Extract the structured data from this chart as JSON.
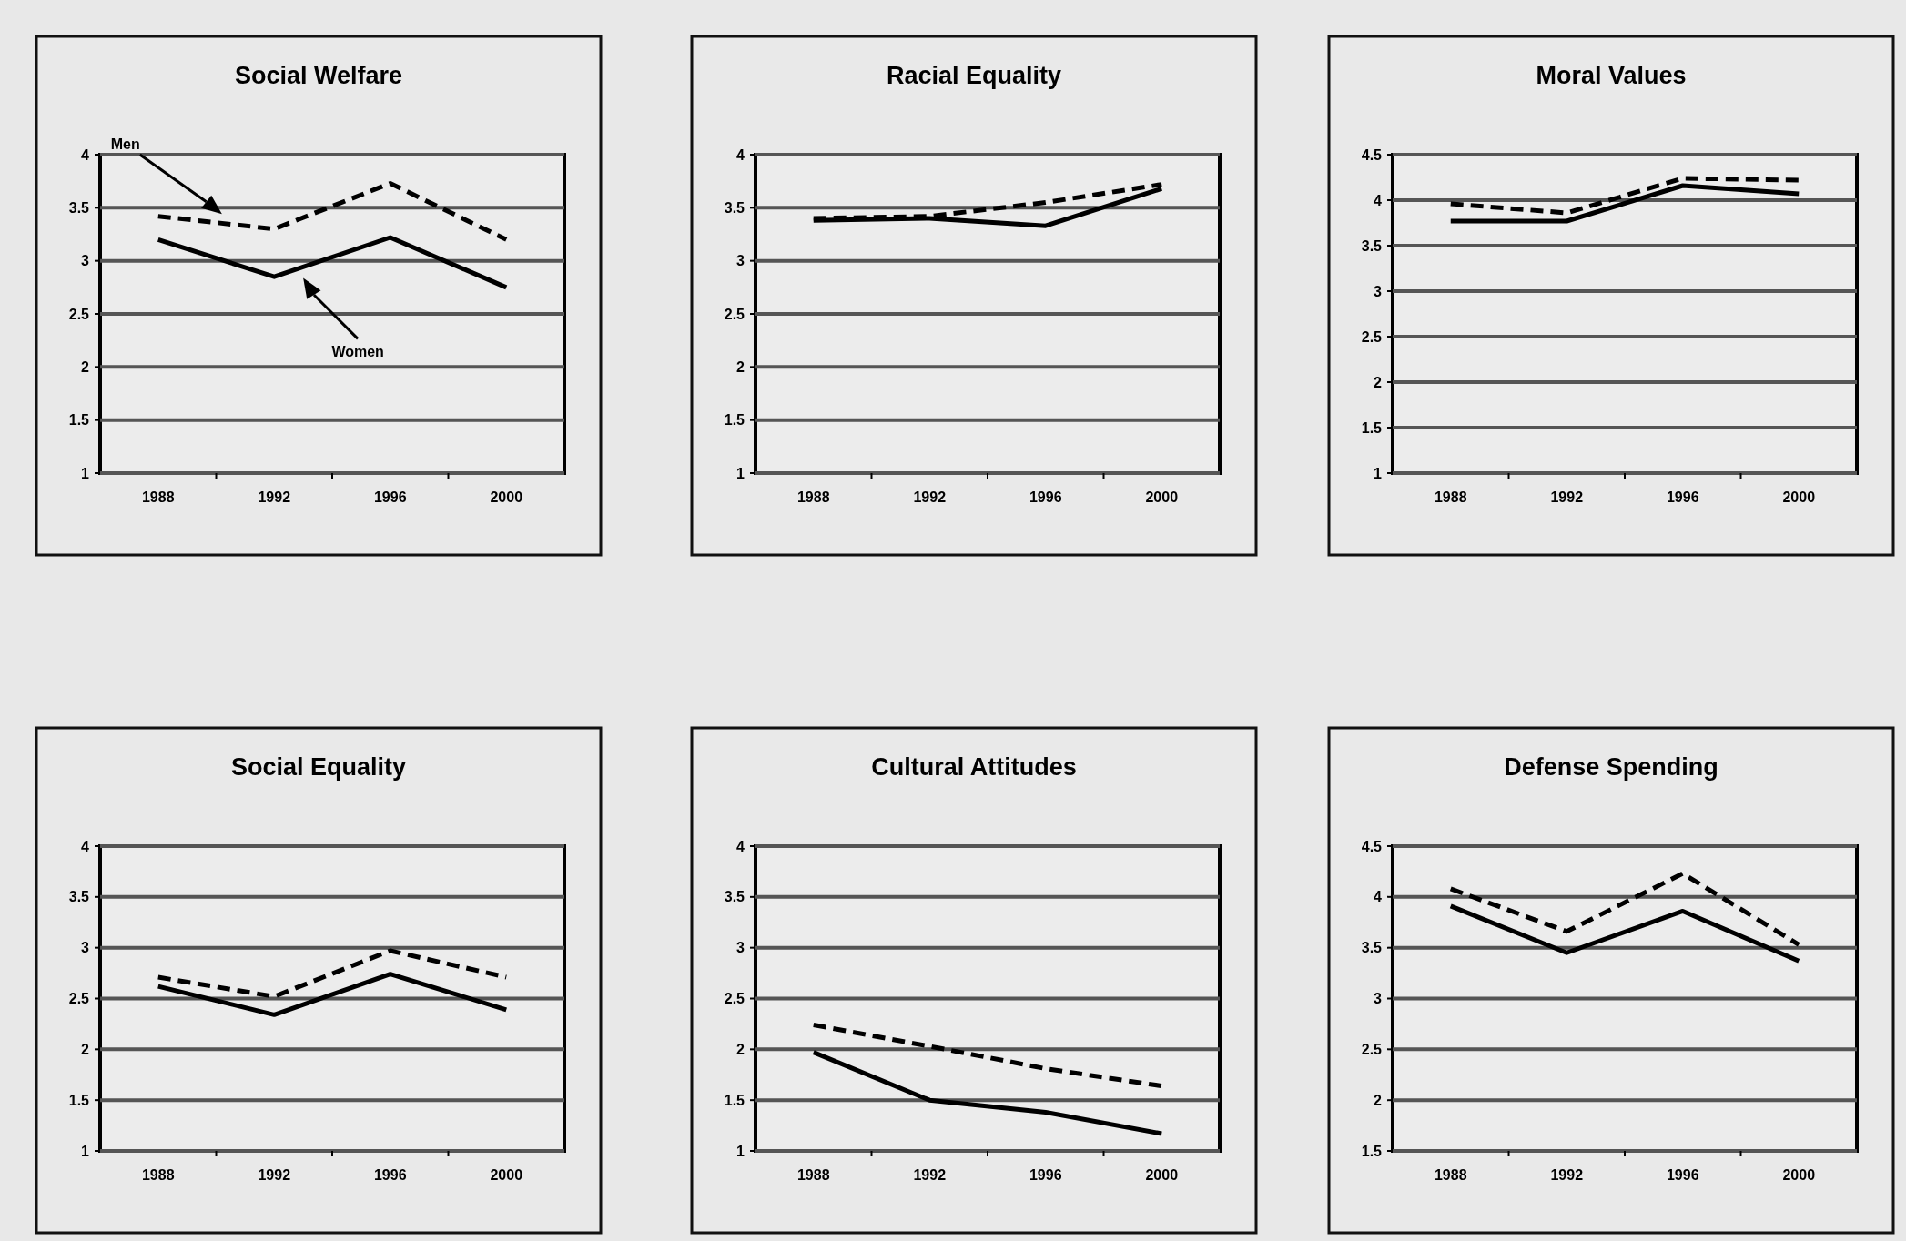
{
  "chart_data": [
    {
      "type": "line",
      "title": "Social Welfare",
      "categories": [
        "1988",
        "1992",
        "1996",
        "2000"
      ],
      "ylim": [
        1,
        4
      ],
      "yticks": [
        1,
        1.5,
        2,
        2.5,
        3,
        3.5,
        4
      ],
      "grid": "y",
      "legend": false,
      "marker": "none",
      "series": [
        {
          "name": "Men",
          "color": "#000000",
          "line_style": "dashed",
          "values": [
            3.42,
            3.3,
            3.73,
            3.2
          ]
        },
        {
          "name": "Women",
          "color": "#000000",
          "line_style": "solid",
          "values": [
            3.2,
            2.85,
            3.22,
            2.75
          ]
        }
      ]
    },
    {
      "type": "line",
      "title": "Racial Equality",
      "categories": [
        "1988",
        "1992",
        "1996",
        "2000"
      ],
      "ylim": [
        1,
        4
      ],
      "yticks": [
        1,
        1.5,
        2,
        2.5,
        3,
        3.5,
        4
      ],
      "grid": "y",
      "legend": false,
      "marker": "none",
      "series": [
        {
          "color": "#000000",
          "line_style": "dashed",
          "values": [
            3.4,
            3.42,
            3.55,
            3.72
          ]
        },
        {
          "color": "#000000",
          "line_style": "solid",
          "values": [
            3.38,
            3.4,
            3.33,
            3.68
          ]
        }
      ]
    },
    {
      "type": "line",
      "title": "Moral Values",
      "categories": [
        "1988",
        "1992",
        "1996",
        "2000"
      ],
      "ylim": [
        1,
        4.5
      ],
      "yticks": [
        1,
        1.5,
        2,
        2.5,
        3,
        3.5,
        4,
        4.5
      ],
      "grid": "y",
      "legend": false,
      "marker": "none",
      "series": [
        {
          "color": "#000000",
          "line_style": "dashed",
          "values": [
            3.96,
            3.86,
            4.24,
            4.22
          ]
        },
        {
          "color": "#000000",
          "line_style": "solid",
          "values": [
            3.77,
            3.77,
            4.16,
            4.07
          ]
        }
      ]
    },
    {
      "type": "line",
      "title": "Social Equality",
      "categories": [
        "1988",
        "1992",
        "1996",
        "2000"
      ],
      "ylim": [
        1,
        4
      ],
      "yticks": [
        1,
        1.5,
        2,
        2.5,
        3,
        3.5,
        4
      ],
      "grid": "y",
      "legend": false,
      "marker": "none",
      "series": [
        {
          "color": "#000000",
          "line_style": "dashed",
          "values": [
            2.71,
            2.52,
            2.97,
            2.71
          ]
        },
        {
          "color": "#000000",
          "line_style": "solid",
          "values": [
            2.62,
            2.34,
            2.74,
            2.39
          ]
        }
      ]
    },
    {
      "type": "line",
      "title": "Cultural Attitudes",
      "categories": [
        "1988",
        "1992",
        "1996",
        "2000"
      ],
      "ylim": [
        1,
        4
      ],
      "yticks": [
        1,
        1.5,
        2,
        2.5,
        3,
        3.5,
        4
      ],
      "grid": "y",
      "legend": false,
      "marker": "none",
      "series": [
        {
          "color": "#000000",
          "line_style": "dashed",
          "values": [
            2.24,
            2.03,
            1.81,
            1.64
          ]
        },
        {
          "color": "#000000",
          "line_style": "solid",
          "values": [
            1.97,
            1.5,
            1.38,
            1.17
          ]
        }
      ]
    },
    {
      "type": "line",
      "title": "Defense Spending",
      "categories": [
        "1988",
        "1992",
        "1996",
        "2000"
      ],
      "ylim": [
        1.5,
        4.5
      ],
      "yticks": [
        1.5,
        2,
        2.5,
        3,
        3.5,
        4,
        4.5
      ],
      "grid": "y",
      "legend": false,
      "marker": "none",
      "series": [
        {
          "color": "#000000",
          "line_style": "dashed",
          "values": [
            4.08,
            3.66,
            4.23,
            3.53
          ]
        },
        {
          "color": "#000000",
          "line_style": "solid",
          "values": [
            3.91,
            3.45,
            3.86,
            3.37
          ]
        }
      ]
    }
  ]
}
